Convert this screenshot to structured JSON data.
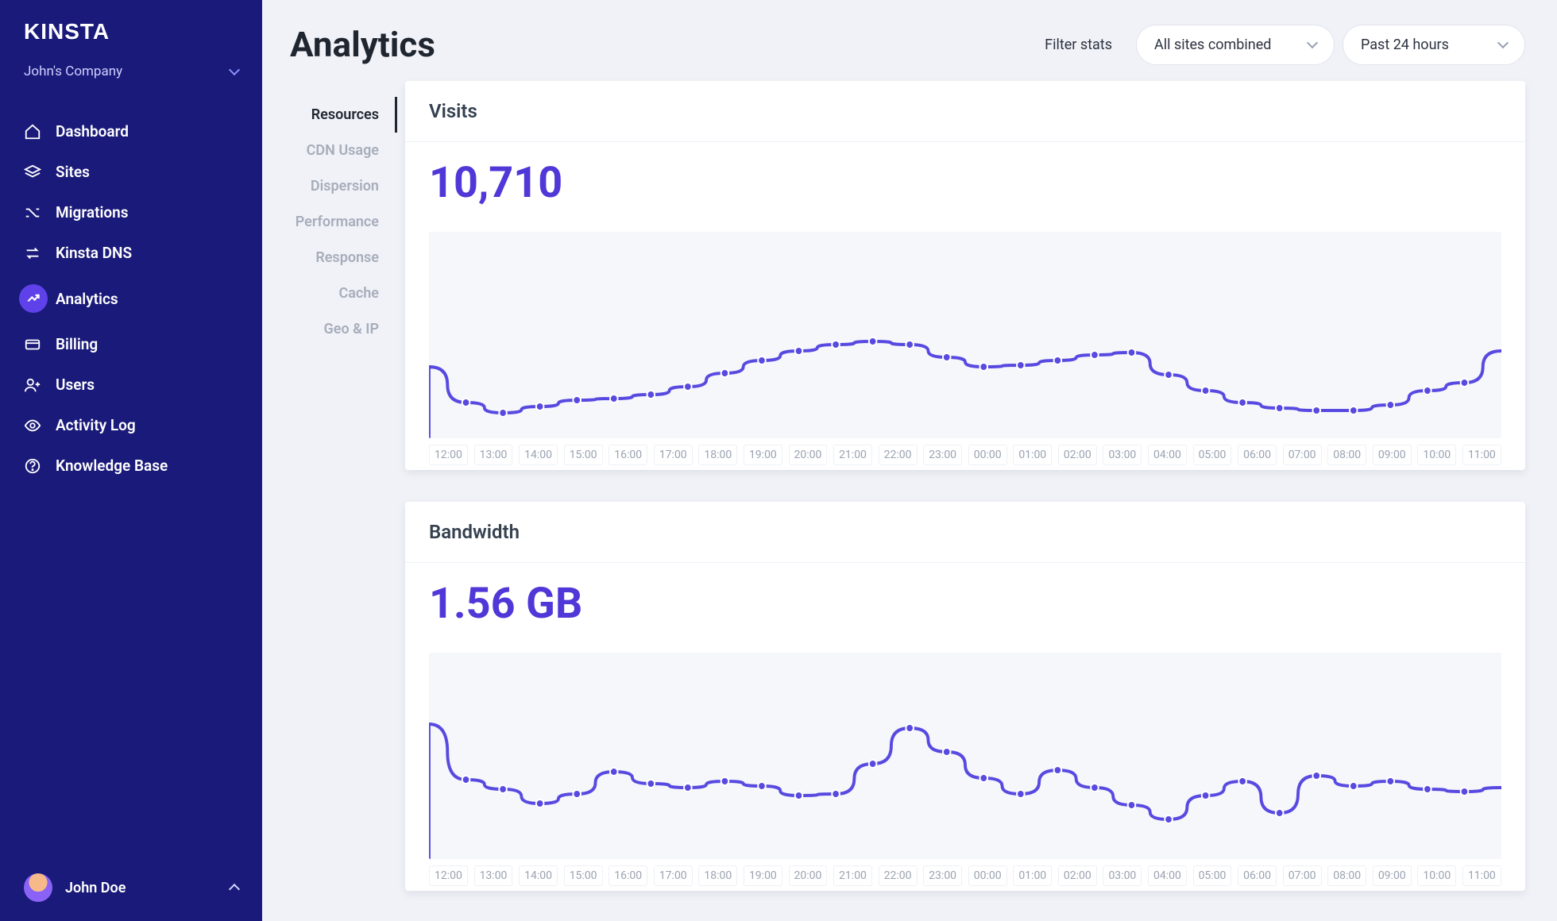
{
  "brand": "KINSTA",
  "company": {
    "name": "John's Company"
  },
  "nav": {
    "items": [
      {
        "label": "Dashboard",
        "icon": "home"
      },
      {
        "label": "Sites",
        "icon": "layers"
      },
      {
        "label": "Migrations",
        "icon": "shuffle"
      },
      {
        "label": "Kinsta DNS",
        "icon": "swap"
      },
      {
        "label": "Analytics",
        "icon": "trend",
        "active": true
      },
      {
        "label": "Billing",
        "icon": "card"
      },
      {
        "label": "Users",
        "icon": "userplus"
      },
      {
        "label": "Activity Log",
        "icon": "eye"
      },
      {
        "label": "Knowledge Base",
        "icon": "help"
      }
    ]
  },
  "user": {
    "name": "John Doe"
  },
  "page": {
    "title": "Analytics",
    "filter_label": "Filter stats",
    "site_selector": "All sites combined",
    "time_selector": "Past 24 hours"
  },
  "subnav": {
    "items": [
      {
        "label": "Resources",
        "active": true
      },
      {
        "label": "CDN Usage"
      },
      {
        "label": "Dispersion"
      },
      {
        "label": "Performance"
      },
      {
        "label": "Response"
      },
      {
        "label": "Cache"
      },
      {
        "label": "Geo & IP"
      }
    ]
  },
  "charts": {
    "time_labels": [
      "12:00",
      "13:00",
      "14:00",
      "15:00",
      "16:00",
      "17:00",
      "18:00",
      "19:00",
      "20:00",
      "21:00",
      "22:00",
      "23:00",
      "00:00",
      "01:00",
      "02:00",
      "03:00",
      "04:00",
      "05:00",
      "06:00",
      "07:00",
      "08:00",
      "09:00",
      "10:00",
      "11:00"
    ],
    "line_color": "#584ae0",
    "area_bg": "#f6f7fb",
    "marker_fill": "#ffffff",
    "line_width": 4,
    "marker_radius": 5,
    "visits": {
      "title": "Visits",
      "value": "10,710",
      "y_range": [
        0,
        260
      ],
      "series": [
        100,
        55,
        42,
        50,
        58,
        60,
        65,
        75,
        92,
        108,
        120,
        128,
        132,
        128,
        112,
        100,
        102,
        108,
        115,
        118,
        90,
        70,
        55,
        48,
        45,
        45,
        52,
        70,
        80,
        120
      ]
    },
    "bandwidth": {
      "title": "Bandwidth",
      "value": "1.56 GB",
      "y_range": [
        0,
        260
      ],
      "series": [
        180,
        110,
        98,
        80,
        92,
        120,
        105,
        100,
        108,
        102,
        90,
        92,
        130,
        175,
        145,
        112,
        92,
        122,
        100,
        78,
        60,
        90,
        108,
        68,
        115,
        102,
        108,
        98,
        95,
        100
      ]
    }
  }
}
